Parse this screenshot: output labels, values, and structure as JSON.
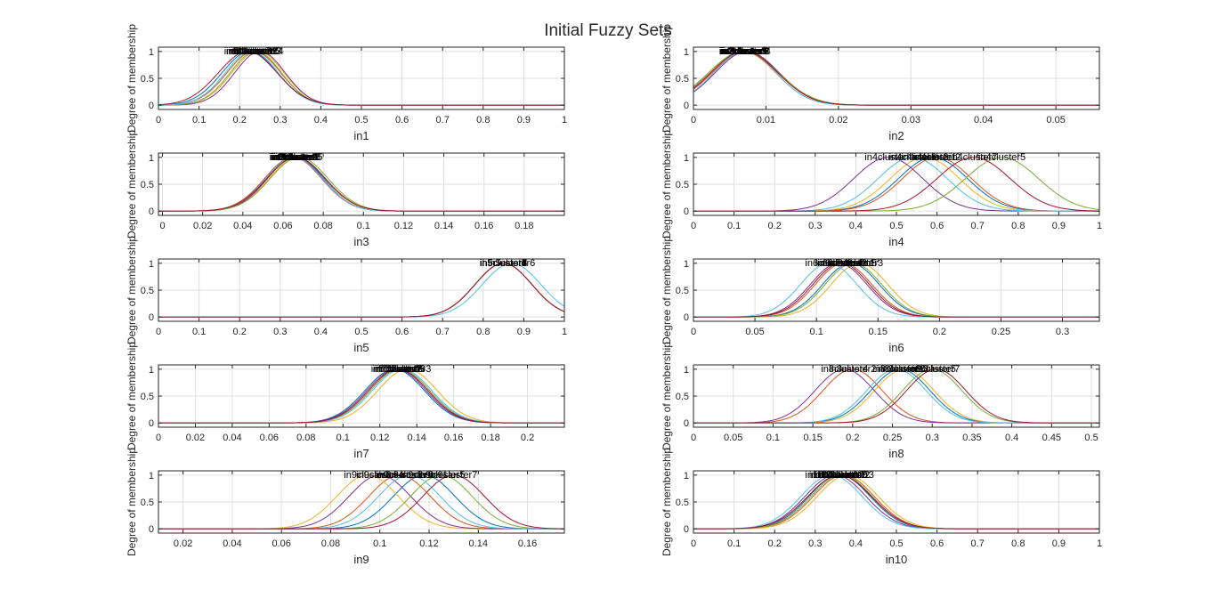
{
  "figure": {
    "title": "Initial Fuzzy Sets"
  },
  "colors": [
    "#0072BD",
    "#D95319",
    "#EDB120",
    "#7E2F8E",
    "#77AC30",
    "#4DBEEE",
    "#A2142F"
  ],
  "chart_data": [
    {
      "type": "line",
      "xlabel": "in1",
      "ylabel": "Degree of membership",
      "xlim": [
        0,
        1
      ],
      "ylim": [
        -0.08,
        1.08
      ],
      "xticks": [
        0,
        0.1,
        0.2,
        0.3,
        0.4,
        0.5,
        0.6,
        0.7,
        0.8,
        0.9,
        1
      ],
      "xticklabels": [
        "0",
        "0.1",
        "0.2",
        "0.3",
        "0.4",
        "0.5",
        "0.6",
        "0.7",
        "0.8",
        "0.9",
        "1"
      ],
      "yticks": [
        0,
        0.5,
        1
      ],
      "yticklabels": [
        "0",
        "0.5",
        "1"
      ],
      "series": [
        {
          "label": "in1cluster1",
          "center": 0.225,
          "sigma": 0.068
        },
        {
          "label": "in1cluster2",
          "center": 0.235,
          "sigma": 0.066
        },
        {
          "label": "in1cluster3",
          "center": 0.245,
          "sigma": 0.064
        },
        {
          "label": "in1cluster4",
          "center": 0.25,
          "sigma": 0.062
        },
        {
          "label": "in1cluster5",
          "center": 0.24,
          "sigma": 0.063
        },
        {
          "label": "in1cluster6",
          "center": 0.23,
          "sigma": 0.065
        },
        {
          "label": "in1cluster7",
          "center": 0.22,
          "sigma": 0.072
        }
      ]
    },
    {
      "type": "line",
      "xlabel": "in2",
      "ylabel": "Degree of membership",
      "xlim": [
        0,
        0.056
      ],
      "ylim": [
        -0.08,
        1.08
      ],
      "xticks": [
        0,
        0.01,
        0.02,
        0.03,
        0.04,
        0.05
      ],
      "xticklabels": [
        "0",
        "0.01",
        "0.02",
        "0.03",
        "0.04",
        "0.05"
      ],
      "yticks": [
        0,
        0.5,
        1
      ],
      "yticklabels": [
        "0",
        "0.5",
        "1"
      ],
      "series": [
        {
          "label": "in2cluster1",
          "center": 0.007,
          "sigma": 0.0047
        },
        {
          "label": "in2cluster2",
          "center": 0.0072,
          "sigma": 0.0046
        },
        {
          "label": "in2cluster3",
          "center": 0.0068,
          "sigma": 0.0045
        },
        {
          "label": "in2cluster4",
          "center": 0.0074,
          "sigma": 0.0044
        },
        {
          "label": "in2cluster5",
          "center": 0.0069,
          "sigma": 0.0048
        },
        {
          "label": "in2cluster6",
          "center": 0.0071,
          "sigma": 0.0043
        },
        {
          "label": "in2cluster7",
          "center": 0.007,
          "sigma": 0.0046
        }
      ]
    },
    {
      "type": "line",
      "xlabel": "in3",
      "ylabel": "Degree of membership",
      "xlim": [
        -0.002,
        0.2
      ],
      "ylim": [
        -0.08,
        1.08
      ],
      "xticks": [
        0,
        0.02,
        0.04,
        0.06,
        0.08,
        0.1,
        0.12,
        0.14,
        0.16,
        0.18
      ],
      "xticklabels": [
        "0",
        "0.02",
        "0.04",
        "0.06",
        "0.08",
        "0.1",
        "0.12",
        "0.14",
        "0.16",
        "0.18"
      ],
      "yticks": [
        0,
        0.5,
        1
      ],
      "yticklabels": [
        "0",
        "0.5",
        "1"
      ],
      "series": [
        {
          "label": "in3cluster1",
          "center": 0.066,
          "sigma": 0.0145
        },
        {
          "label": "in3cluster2",
          "center": 0.065,
          "sigma": 0.0142
        },
        {
          "label": "in3cluster3",
          "center": 0.067,
          "sigma": 0.014
        },
        {
          "label": "in3cluster4",
          "center": 0.066,
          "sigma": 0.0138
        },
        {
          "label": "in3cluster5",
          "center": 0.068,
          "sigma": 0.0144
        },
        {
          "label": "in3cluster6",
          "center": 0.0655,
          "sigma": 0.0141
        },
        {
          "label": "in3cluster7",
          "center": 0.0665,
          "sigma": 0.0146
        }
      ]
    },
    {
      "type": "line",
      "xlabel": "in4",
      "ylabel": "Degree of membership",
      "xlim": [
        0,
        1
      ],
      "ylim": [
        -0.08,
        1.08
      ],
      "xticks": [
        0,
        0.1,
        0.2,
        0.3,
        0.4,
        0.5,
        0.6,
        0.7,
        0.8,
        0.9,
        1
      ],
      "xticklabels": [
        "0",
        "0.1",
        "0.2",
        "0.3",
        "0.4",
        "0.5",
        "0.6",
        "0.7",
        "0.8",
        "0.9",
        "1"
      ],
      "yticks": [
        0,
        0.5,
        1
      ],
      "yticklabels": [
        "0",
        "0.5",
        "1"
      ],
      "series": [
        {
          "label": "in4cluster1",
          "center": 0.59,
          "sigma": 0.085
        },
        {
          "label": "in4cluster2",
          "center": 0.6,
          "sigma": 0.085
        },
        {
          "label": "in4cluster3",
          "center": 0.57,
          "sigma": 0.085
        },
        {
          "label": "in4cluster4",
          "center": 0.48,
          "sigma": 0.085
        },
        {
          "label": "in4cluster5",
          "center": 0.76,
          "sigma": 0.09
        },
        {
          "label": "in4cluster6",
          "center": 0.54,
          "sigma": 0.085
        },
        {
          "label": "in4cluster7",
          "center": 0.69,
          "sigma": 0.09
        }
      ]
    },
    {
      "type": "line",
      "xlabel": "in5",
      "ylabel": "Degree of membership",
      "xlim": [
        0,
        1
      ],
      "ylim": [
        -0.08,
        1.08
      ],
      "xticks": [
        0,
        0.1,
        0.2,
        0.3,
        0.4,
        0.5,
        0.6,
        0.7,
        0.8,
        0.9,
        1
      ],
      "xticklabels": [
        "0",
        "0.1",
        "0.2",
        "0.3",
        "0.4",
        "0.5",
        "0.6",
        "0.7",
        "0.8",
        "0.9",
        "1"
      ],
      "yticks": [
        0,
        0.5,
        1
      ],
      "yticklabels": [
        "0",
        "0.5",
        "1"
      ],
      "series": [
        {
          "label": "in5cluster1",
          "center": 0.85,
          "sigma": 0.07
        },
        {
          "label": "in5cluster2",
          "center": 0.85,
          "sigma": 0.07
        },
        {
          "label": "in5cluster3",
          "center": 0.85,
          "sigma": 0.07
        },
        {
          "label": "in5cluster4",
          "center": 0.85,
          "sigma": 0.07
        },
        {
          "label": "in5cluster5",
          "center": 0.85,
          "sigma": 0.07
        },
        {
          "label": "in5cluster6",
          "center": 0.87,
          "sigma": 0.072
        },
        {
          "label": "in5cluster7",
          "center": 0.85,
          "sigma": 0.07
        }
      ]
    },
    {
      "type": "line",
      "xlabel": "in6",
      "ylabel": "Degree of membership",
      "xlim": [
        0,
        0.33
      ],
      "ylim": [
        -0.08,
        1.08
      ],
      "xticks": [
        0,
        0.05,
        0.1,
        0.15,
        0.2,
        0.25,
        0.3
      ],
      "xticklabels": [
        "0",
        "0.05",
        "0.1",
        "0.15",
        "0.2",
        "0.25",
        "0.3"
      ],
      "yticks": [
        0,
        0.5,
        1
      ],
      "yticklabels": [
        "0",
        "0.5",
        "1"
      ],
      "series": [
        {
          "label": "in6cluster1",
          "center": 0.128,
          "sigma": 0.023
        },
        {
          "label": "in6cluster2",
          "center": 0.122,
          "sigma": 0.023
        },
        {
          "label": "in6cluster3",
          "center": 0.135,
          "sigma": 0.023
        },
        {
          "label": "in6cluster4",
          "center": 0.118,
          "sigma": 0.023
        },
        {
          "label": "in6cluster5",
          "center": 0.13,
          "sigma": 0.023
        },
        {
          "label": "in6cluster6",
          "center": 0.11,
          "sigma": 0.023
        },
        {
          "label": "in6cluster7",
          "center": 0.12,
          "sigma": 0.023
        }
      ]
    },
    {
      "type": "line",
      "xlabel": "in7",
      "ylabel": "Degree of membership",
      "xlim": [
        0,
        0.22
      ],
      "ylim": [
        -0.08,
        1.08
      ],
      "xticks": [
        0,
        0.02,
        0.04,
        0.06,
        0.08,
        0.1,
        0.12,
        0.14,
        0.16,
        0.18,
        0.2
      ],
      "xticklabels": [
        "0",
        "0.02",
        "0.04",
        "0.06",
        "0.08",
        "0.1",
        "0.12",
        "0.14",
        "0.16",
        "0.18",
        "0.2"
      ],
      "yticks": [
        0,
        0.5,
        1
      ],
      "yticklabels": [
        "0",
        "0.5",
        "1"
      ],
      "series": [
        {
          "label": "in7cluster1",
          "center": 0.128,
          "sigma": 0.016
        },
        {
          "label": "in7cluster2",
          "center": 0.13,
          "sigma": 0.016
        },
        {
          "label": "in7cluster3",
          "center": 0.135,
          "sigma": 0.016
        },
        {
          "label": "in7cluster4",
          "center": 0.129,
          "sigma": 0.016
        },
        {
          "label": "in7cluster5",
          "center": 0.131,
          "sigma": 0.016
        },
        {
          "label": "in7cluster6",
          "center": 0.132,
          "sigma": 0.016
        },
        {
          "label": "in7cluster7",
          "center": 0.13,
          "sigma": 0.016
        }
      ]
    },
    {
      "type": "line",
      "xlabel": "in8",
      "ylabel": "Degree of membership",
      "xlim": [
        0,
        0.51
      ],
      "ylim": [
        -0.08,
        1.08
      ],
      "xticks": [
        0,
        0.05,
        0.1,
        0.15,
        0.2,
        0.25,
        0.3,
        0.35,
        0.4,
        0.45,
        0.5
      ],
      "xticklabels": [
        "0",
        "0.05",
        "0.1",
        "0.15",
        "0.2",
        "0.25",
        "0.3",
        "0.35",
        "0.4",
        "0.45",
        "0.5"
      ],
      "yticks": [
        0,
        0.5,
        1
      ],
      "yticklabels": [
        "0",
        "0.5",
        "1"
      ],
      "series": [
        {
          "label": "in8cluster1",
          "center": 0.26,
          "sigma": 0.037
        },
        {
          "label": "in8cluster2",
          "center": 0.2,
          "sigma": 0.037
        },
        {
          "label": "in8cluster3",
          "center": 0.265,
          "sigma": 0.037
        },
        {
          "label": "in8cluster4",
          "center": 0.19,
          "sigma": 0.037
        },
        {
          "label": "in8cluster5",
          "center": 0.3,
          "sigma": 0.037
        },
        {
          "label": "in8cluster6",
          "center": 0.255,
          "sigma": 0.037
        },
        {
          "label": "in8cluster7",
          "center": 0.305,
          "sigma": 0.037
        }
      ]
    },
    {
      "type": "line",
      "xlabel": "in9",
      "ylabel": "Degree of membership",
      "xlim": [
        0.01,
        0.175
      ],
      "ylim": [
        -0.08,
        1.08
      ],
      "xticks": [
        0.02,
        0.04,
        0.06,
        0.08,
        0.1,
        0.12,
        0.14,
        0.16
      ],
      "xticklabels": [
        "0.02",
        "0.04",
        "0.06",
        "0.08",
        "0.1",
        "0.12",
        "0.14",
        "0.16"
      ],
      "yticks": [
        0,
        0.5,
        1
      ],
      "yticklabels": [
        "0",
        "0.5",
        "1"
      ],
      "series": [
        {
          "label": "in9cluster1",
          "center": 0.118,
          "sigma": 0.0125
        },
        {
          "label": "in9cluster2",
          "center": 0.108,
          "sigma": 0.0125
        },
        {
          "label": "in9cluster3",
          "center": 0.095,
          "sigma": 0.0125
        },
        {
          "label": "in9cluster4",
          "center": 0.1,
          "sigma": 0.0125
        },
        {
          "label": "in9cluster5",
          "center": 0.125,
          "sigma": 0.0125
        },
        {
          "label": "in9cluster6",
          "center": 0.112,
          "sigma": 0.0125
        },
        {
          "label": "in9cluster7",
          "center": 0.13,
          "sigma": 0.0125
        }
      ]
    },
    {
      "type": "line",
      "xlabel": "in10",
      "ylabel": "Degree of membership",
      "xlim": [
        0,
        1
      ],
      "ylim": [
        -0.08,
        1.08
      ],
      "xticks": [
        0,
        0.1,
        0.2,
        0.3,
        0.4,
        0.5,
        0.6,
        0.7,
        0.8,
        0.9,
        1
      ],
      "xticklabels": [
        "0",
        "0.1",
        "0.2",
        "0.3",
        "0.4",
        "0.5",
        "0.6",
        "0.7",
        "0.8",
        "0.9",
        "1"
      ],
      "yticks": [
        0,
        0.5,
        1
      ],
      "yticklabels": [
        "0",
        "0.5",
        "1"
      ],
      "series": [
        {
          "label": "in10cluster1",
          "center": 0.36,
          "sigma": 0.075
        },
        {
          "label": "in10cluster2",
          "center": 0.37,
          "sigma": 0.075
        },
        {
          "label": "in10cluster3",
          "center": 0.38,
          "sigma": 0.075
        },
        {
          "label": "in10cluster4",
          "center": 0.35,
          "sigma": 0.075
        },
        {
          "label": "in10cluster5",
          "center": 0.365,
          "sigma": 0.075
        },
        {
          "label": "in10cluster6",
          "center": 0.34,
          "sigma": 0.075
        },
        {
          "label": "in10cluster7",
          "center": 0.36,
          "sigma": 0.078
        }
      ]
    }
  ]
}
